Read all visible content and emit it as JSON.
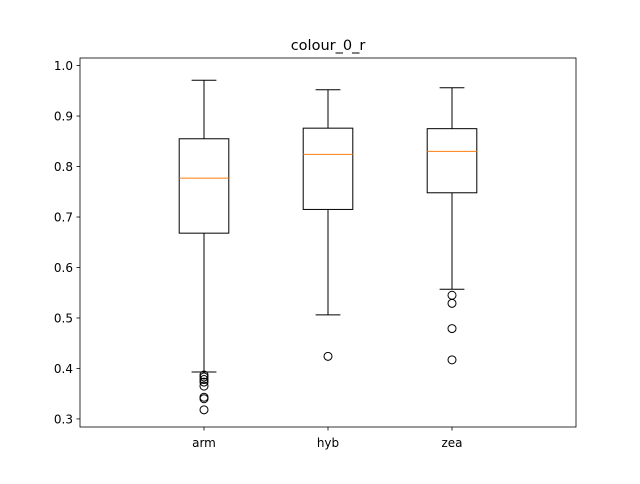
{
  "chart_data": {
    "type": "box",
    "title": "colour_0_r",
    "xlabel": "",
    "ylabel": "",
    "categories": [
      "arm",
      "hyb",
      "zea"
    ],
    "ylim": [
      0.284,
      1.015
    ],
    "yticks": [
      0.3,
      0.4,
      0.5,
      0.6,
      0.7,
      0.8,
      0.9,
      1.0
    ],
    "ytick_labels": [
      "0.3",
      "0.4",
      "0.5",
      "0.6",
      "0.7",
      "0.8",
      "0.9",
      "1.0"
    ],
    "grid": false,
    "boxes": [
      {
        "label": "arm",
        "whisker_low": 0.393,
        "q1": 0.668,
        "median": 0.777,
        "q3": 0.855,
        "whisker_high": 0.971,
        "outliers": [
          0.387,
          0.383,
          0.378,
          0.373,
          0.365,
          0.343,
          0.34,
          0.318
        ]
      },
      {
        "label": "hyb",
        "whisker_low": 0.506,
        "q1": 0.715,
        "median": 0.824,
        "q3": 0.876,
        "whisker_high": 0.952,
        "outliers": [
          0.424
        ]
      },
      {
        "label": "zea",
        "whisker_low": 0.557,
        "q1": 0.748,
        "median": 0.83,
        "q3": 0.875,
        "whisker_high": 0.956,
        "outliers": [
          0.545,
          0.529,
          0.479,
          0.417
        ]
      }
    ],
    "colors": {
      "box": "#000000",
      "median": "#ff7f0e",
      "outlier": "#000000"
    }
  }
}
